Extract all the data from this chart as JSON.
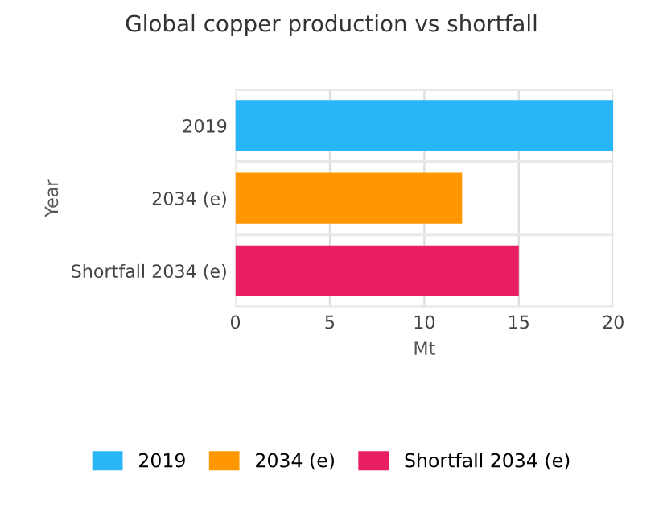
{
  "chart_data": {
    "type": "bar",
    "orientation": "horizontal",
    "title": "Global copper production vs shortfall",
    "xlabel": "Mt",
    "ylabel": "Year",
    "categories": [
      "2019",
      "2034 (e)",
      "Shortfall 2034 (e)"
    ],
    "series": [
      {
        "name": "2019",
        "color": "#29b6f6",
        "values": [
          20,
          null,
          null
        ]
      },
      {
        "name": "2034 (e)",
        "color": "#ff9800",
        "values": [
          null,
          12,
          null
        ]
      },
      {
        "name": "Shortfall 2034 (e)",
        "color": "#e91e63",
        "values": [
          null,
          null,
          15
        ]
      }
    ],
    "xlim": [
      0,
      20
    ],
    "xticks": [
      0,
      5,
      10,
      15,
      20
    ],
    "grid": true,
    "legend": "bottom"
  }
}
